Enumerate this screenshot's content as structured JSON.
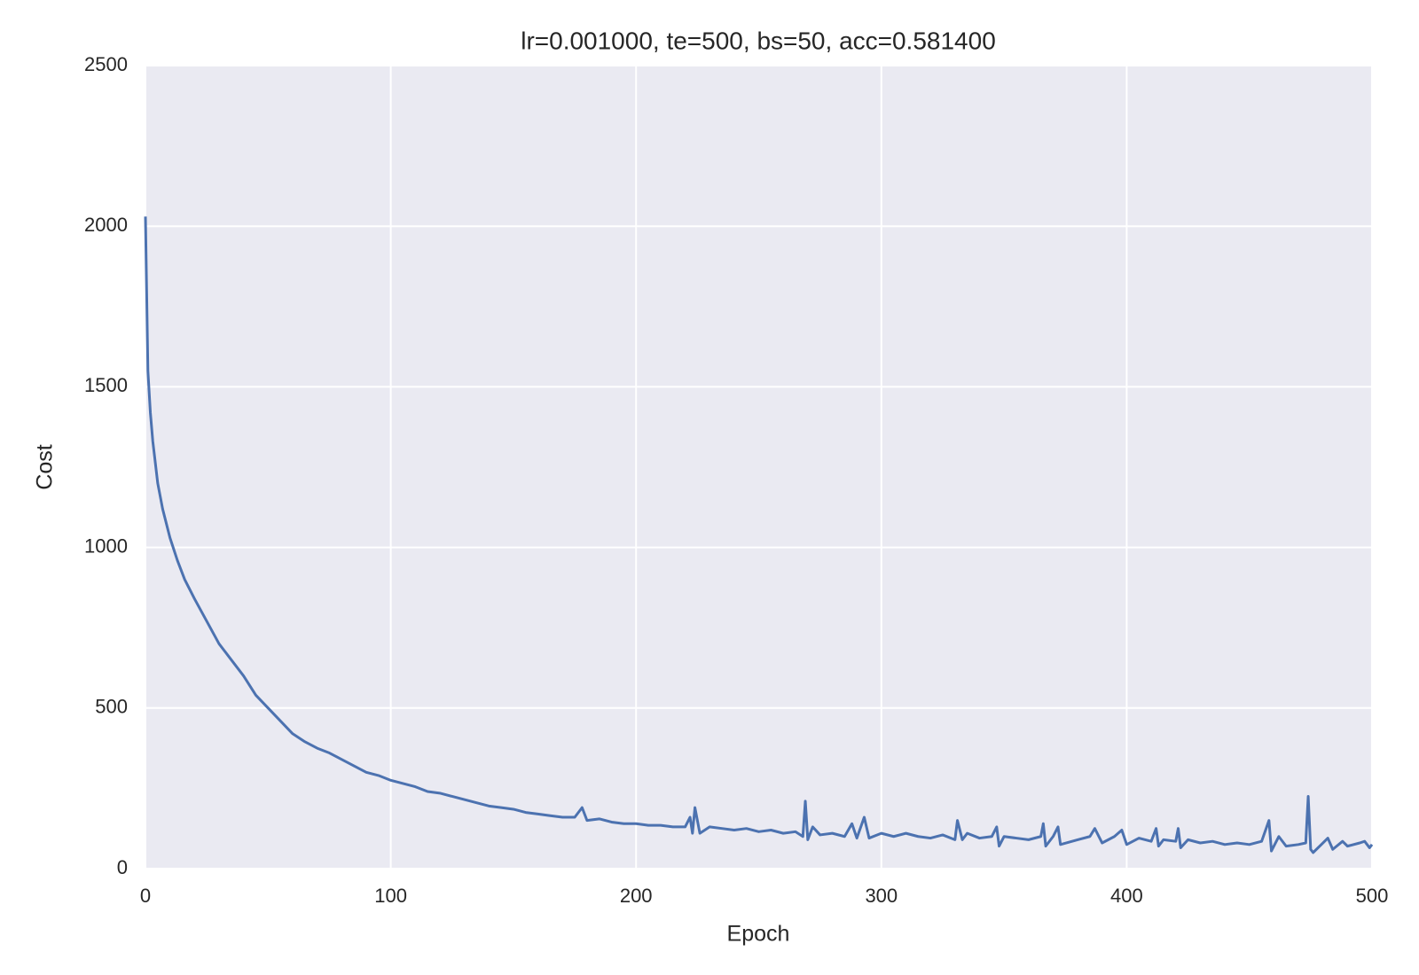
{
  "chart_data": {
    "type": "line",
    "title": "lr=0.001000, te=500, bs=50, acc=0.581400",
    "xlabel": "Epoch",
    "ylabel": "Cost",
    "x": [
      0,
      1,
      2,
      3,
      5,
      7,
      10,
      13,
      16,
      20,
      25,
      30,
      35,
      40,
      45,
      50,
      55,
      60,
      65,
      70,
      75,
      80,
      85,
      90,
      95,
      100,
      105,
      110,
      115,
      120,
      125,
      130,
      135,
      140,
      145,
      150,
      155,
      160,
      165,
      170,
      175,
      178,
      180,
      185,
      190,
      195,
      200,
      205,
      210,
      215,
      220,
      222,
      223,
      224,
      226,
      230,
      235,
      240,
      245,
      250,
      255,
      260,
      265,
      268,
      269,
      270,
      272,
      275,
      280,
      285,
      288,
      290,
      293,
      295,
      300,
      305,
      310,
      315,
      320,
      325,
      330,
      331,
      333,
      335,
      340,
      345,
      347,
      348,
      350,
      355,
      360,
      365,
      366,
      367,
      370,
      372,
      373,
      380,
      385,
      387,
      390,
      395,
      398,
      400,
      405,
      410,
      412,
      413,
      415,
      420,
      421,
      422,
      425,
      430,
      435,
      440,
      445,
      450,
      455,
      458,
      459,
      462,
      465,
      470,
      473,
      474,
      475,
      476,
      480,
      482,
      484,
      488,
      490,
      495,
      497,
      499,
      500
    ],
    "series": [
      {
        "name": "Cost",
        "color": "#4c72b0",
        "values": [
          2030,
          1550,
          1420,
          1330,
          1200,
          1120,
          1030,
          960,
          900,
          840,
          770,
          700,
          650,
          600,
          540,
          500,
          460,
          420,
          395,
          375,
          360,
          340,
          320,
          300,
          290,
          275,
          265,
          255,
          240,
          235,
          225,
          215,
          205,
          195,
          190,
          185,
          175,
          170,
          165,
          160,
          160,
          190,
          150,
          155,
          145,
          140,
          140,
          135,
          135,
          130,
          130,
          160,
          110,
          190,
          110,
          130,
          125,
          120,
          125,
          115,
          120,
          110,
          115,
          100,
          210,
          90,
          130,
          105,
          110,
          100,
          140,
          95,
          160,
          95,
          110,
          100,
          110,
          100,
          95,
          105,
          90,
          150,
          90,
          110,
          95,
          100,
          130,
          70,
          100,
          95,
          90,
          100,
          140,
          70,
          100,
          130,
          75,
          90,
          100,
          125,
          80,
          100,
          120,
          75,
          95,
          85,
          125,
          70,
          90,
          85,
          125,
          65,
          90,
          80,
          85,
          75,
          80,
          75,
          85,
          150,
          55,
          100,
          70,
          75,
          80,
          225,
          60,
          50,
          80,
          95,
          60,
          85,
          70,
          80,
          85,
          65,
          75
        ]
      }
    ],
    "xlim": [
      0,
      500
    ],
    "ylim": [
      0,
      2500
    ],
    "xticks": [
      0,
      100,
      200,
      300,
      400,
      500
    ],
    "yticks": [
      0,
      500,
      1000,
      1500,
      2000,
      2500
    ],
    "grid": true
  }
}
